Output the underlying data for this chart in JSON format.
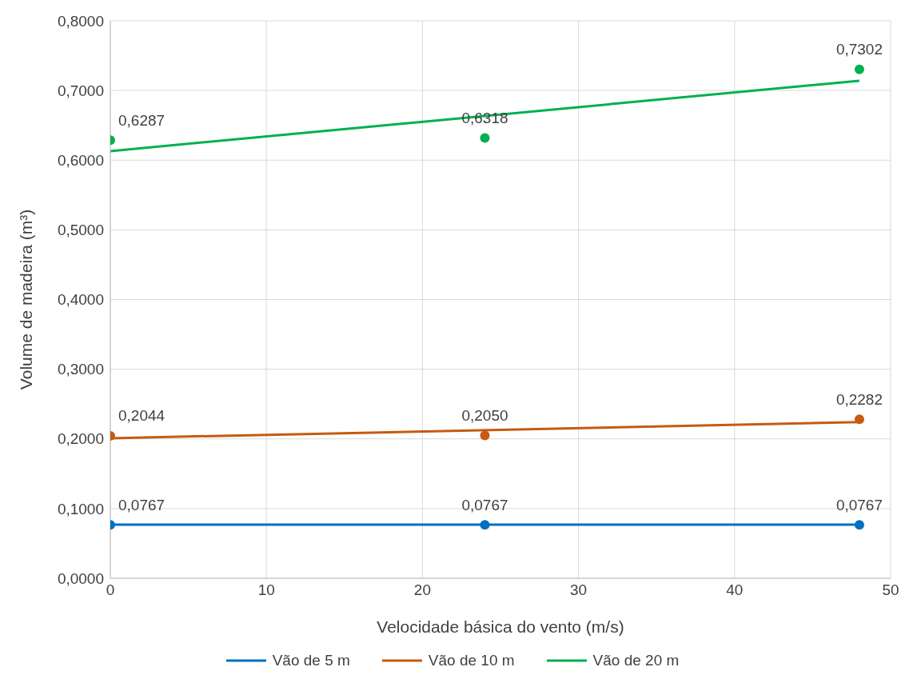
{
  "chart_data": {
    "type": "scatter",
    "xlabel": "Velocidade básica do vento (m/s)",
    "ylabel": "Volume de madeira (m³)",
    "xlim": [
      0,
      50
    ],
    "xticks": [
      0,
      10,
      20,
      30,
      40,
      50
    ],
    "ylim": [
      0,
      0.8
    ],
    "yticks": [
      {
        "value": 0,
        "label": "0,0000"
      },
      {
        "value": 0.1,
        "label": "0,1000"
      },
      {
        "value": 0.2,
        "label": "0,2000"
      },
      {
        "value": 0.3,
        "label": "0,3000"
      },
      {
        "value": 0.4,
        "label": "0,4000"
      },
      {
        "value": 0.5,
        "label": "0,5000"
      },
      {
        "value": 0.6,
        "label": "0,6000"
      },
      {
        "value": 0.7,
        "label": "0,7000"
      },
      {
        "value": 0.8,
        "label": "0,8000"
      }
    ],
    "grid": true,
    "legend": "bottom",
    "marker": "circle",
    "series": [
      {
        "color": "#0070c0",
        "x": [
          0,
          24,
          48
        ],
        "values": [
          0.0767,
          0.0767,
          0.0767
        ],
        "value_labels": [
          "0,0767",
          "0,0767",
          "0,0767"
        ]
      },
      {
        "color": "#c55a11",
        "x": [
          0,
          24,
          48
        ],
        "values": [
          0.2044,
          0.205,
          0.2282
        ],
        "value_labels": [
          "0,2044",
          "0,2050",
          "0,2282"
        ]
      },
      {
        "color": "#00b050",
        "x": [
          0,
          24,
          48
        ],
        "values": [
          0.6287,
          0.6318,
          0.7302
        ],
        "value_labels": [
          "0,6287",
          "0,6318",
          "0,7302"
        ]
      },
      {
        "type": "line",
        "name": "Vão de 5 m",
        "color": "#0070c0",
        "x": [
          0,
          48
        ],
        "values": [
          0.077,
          0.077
        ],
        "marker": "none"
      },
      {
        "type": "line",
        "name": "Vão de 10 m",
        "color": "#c55a11",
        "x": [
          0,
          48
        ],
        "values": [
          0.201,
          0.224
        ],
        "marker": "none"
      },
      {
        "type": "line",
        "name": "Vão de 20 m",
        "color": "#00b050",
        "x": [
          0,
          48
        ],
        "values": [
          0.613,
          0.714
        ],
        "marker": "none"
      }
    ]
  }
}
